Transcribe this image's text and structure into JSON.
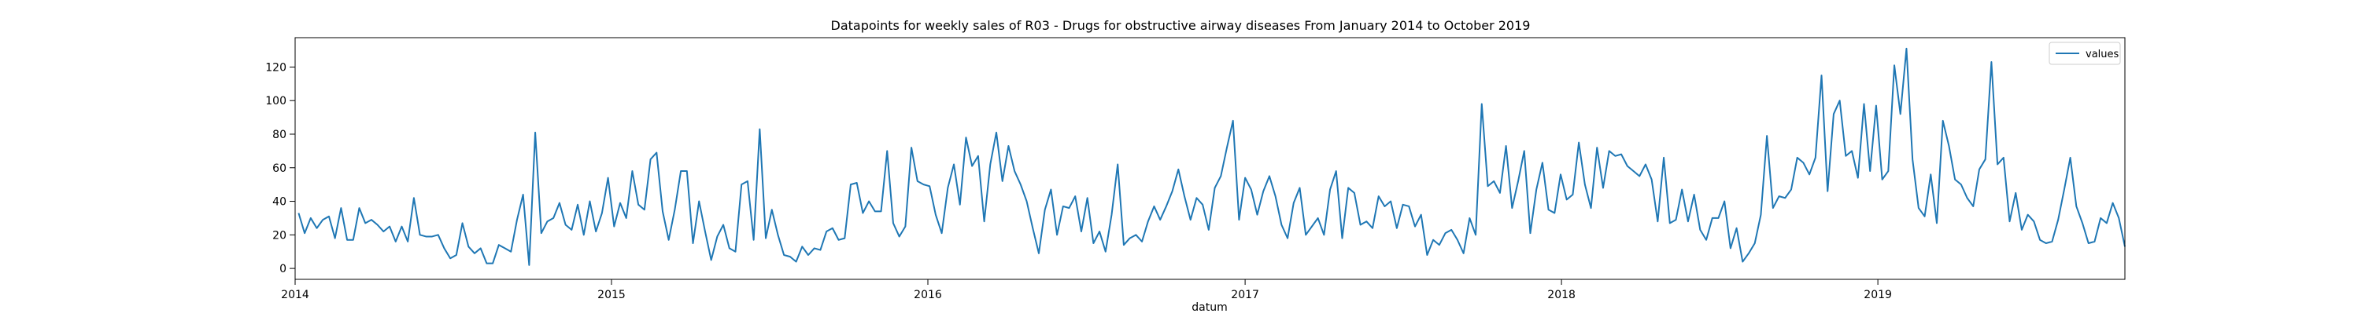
{
  "chart_data": {
    "type": "line",
    "title": "Datapoints for weekly sales of R03 - Drugs for obstructive airway diseases From January 2014 to October 2019",
    "xlabel": "datum",
    "ylabel": "",
    "x_ticks": [
      "2014",
      "2015",
      "2016",
      "2017",
      "2018",
      "2019"
    ],
    "y_ticks": [
      0,
      20,
      40,
      60,
      80,
      100,
      120
    ],
    "xlim": [
      "2014-01-01",
      "2019-10-13"
    ],
    "ylim": [
      -6.5,
      137.5
    ],
    "grid": false,
    "legend": {
      "position": "top-right",
      "entries": [
        "values"
      ]
    },
    "color": "#1f77b4",
    "series": [
      {
        "name": "values",
        "start_date": "2014-01-05",
        "step_days": 7,
        "values": [
          33,
          21,
          30,
          24,
          29,
          31,
          18,
          36,
          17,
          17,
          36,
          27,
          29,
          26,
          22,
          25,
          16,
          25,
          16,
          42,
          20,
          19,
          19,
          20,
          12,
          6,
          8,
          27,
          13,
          9,
          12,
          3,
          3,
          14,
          12,
          10,
          29,
          44,
          2,
          81,
          21,
          28,
          30,
          39,
          26,
          23,
          38,
          20,
          40,
          22,
          33,
          54,
          25,
          39,
          30,
          58,
          38,
          35,
          65,
          69,
          34,
          17,
          35,
          58,
          58,
          15,
          40,
          22,
          5,
          19,
          26,
          12,
          10,
          50,
          52,
          17,
          83,
          18,
          35,
          20,
          8,
          7,
          4,
          13,
          8,
          12,
          11,
          22,
          24,
          17,
          18,
          50,
          51,
          33,
          40,
          34,
          34,
          70,
          27,
          19,
          25,
          72,
          52,
          50,
          49,
          32,
          21,
          48,
          62,
          38,
          78,
          61,
          67,
          28,
          62,
          81,
          52,
          73,
          58,
          50,
          40,
          24,
          9,
          35,
          47,
          20,
          37,
          36,
          43,
          22,
          42,
          15,
          22,
          10,
          32,
          62,
          14,
          18,
          20,
          16,
          28,
          37,
          29,
          37,
          46,
          59,
          43,
          29,
          42,
          38,
          23,
          48,
          55,
          72,
          88,
          29,
          54,
          47,
          32,
          46,
          55,
          43,
          26,
          18,
          39,
          48,
          20,
          25,
          30,
          20,
          47,
          58,
          18,
          48,
          45,
          26,
          28,
          24,
          43,
          37,
          40,
          24,
          38,
          37,
          25,
          32,
          8,
          17,
          14,
          21,
          23,
          17,
          9,
          30,
          20,
          98,
          49,
          52,
          45,
          73,
          36,
          52,
          70,
          21,
          47,
          63,
          35,
          33,
          56,
          41,
          44,
          75,
          50,
          36,
          72,
          48,
          70,
          67,
          68,
          61,
          58,
          55,
          62,
          53,
          28,
          66,
          27,
          29,
          47,
          28,
          44,
          23,
          17,
          30,
          30,
          40,
          12,
          24,
          4,
          9,
          15,
          32,
          79,
          36,
          43,
          42,
          47,
          66,
          63,
          56,
          66,
          115,
          46,
          92,
          100,
          67,
          70,
          54,
          98,
          58,
          97,
          53,
          58,
          121,
          92,
          131,
          65,
          36,
          31,
          56,
          27,
          88,
          73,
          53,
          50,
          42,
          37,
          59,
          65,
          123,
          62,
          66,
          28,
          45,
          23,
          32,
          28,
          17,
          15,
          16,
          29,
          47,
          66,
          37,
          27,
          15,
          16,
          30,
          27,
          39,
          30,
          13
        ]
      }
    ]
  }
}
